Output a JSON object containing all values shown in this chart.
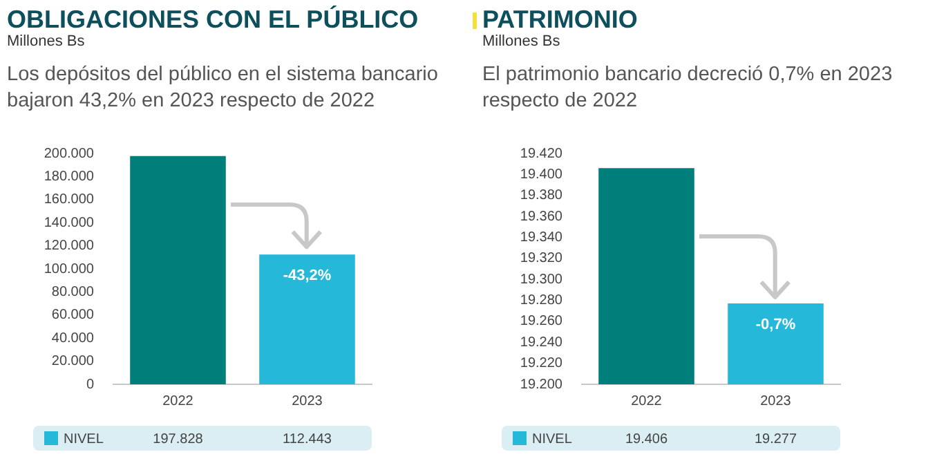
{
  "chart_data": [
    {
      "type": "bar",
      "title": "OBLIGACIONES CON EL PÚBLICO",
      "ylabel": "Millones Bs",
      "subtitle": "Los depósitos del público en el sistema bancario bajaron 43,2% en 2023 respecto de 2022",
      "categories": [
        "2022",
        "2023"
      ],
      "series": [
        {
          "name": "NIVEL",
          "color": "#25b8d9",
          "colors": [
            "#007f7a",
            "#25b8d9"
          ],
          "values": [
            197828,
            112443
          ],
          "value_labels": [
            "197.828",
            "112.443"
          ]
        }
      ],
      "ylim": [
        0,
        200000
      ],
      "yticks": [
        {
          "value": 0,
          "label": "0"
        },
        {
          "value": 20000,
          "label": "20.000"
        },
        {
          "value": 40000,
          "label": "40.000"
        },
        {
          "value": 60000,
          "label": "60.000"
        },
        {
          "value": 80000,
          "label": "80.000"
        },
        {
          "value": 100000,
          "label": "100.000"
        },
        {
          "value": 120000,
          "label": "120.000"
        },
        {
          "value": 140000,
          "label": "140.000"
        },
        {
          "value": 160000,
          "label": "160.000"
        },
        {
          "value": 180000,
          "label": "180.000"
        },
        {
          "value": 200000,
          "label": "200.000"
        }
      ],
      "annotations": [
        "-43,2%"
      ],
      "legend": "bottom",
      "grid": false
    },
    {
      "type": "bar",
      "title": "PATRIMONIO",
      "ylabel": "Millones Bs",
      "subtitle": "El patrimonio bancario decreció  0,7% en 2023 respecto de 2022",
      "categories": [
        "2022",
        "2023"
      ],
      "series": [
        {
          "name": "NIVEL",
          "color": "#25b8d9",
          "colors": [
            "#007f7a",
            "#25b8d9"
          ],
          "values": [
            19406,
            19277
          ],
          "value_labels": [
            "19.406",
            "19.277"
          ]
        }
      ],
      "ylim": [
        19200,
        19420
      ],
      "yticks": [
        {
          "value": 19200,
          "label": "19.200"
        },
        {
          "value": 19220,
          "label": "19.220"
        },
        {
          "value": 19240,
          "label": "19.240"
        },
        {
          "value": 19260,
          "label": "19.260"
        },
        {
          "value": 19280,
          "label": "19.280"
        },
        {
          "value": 19300,
          "label": "19.300"
        },
        {
          "value": 19320,
          "label": "19.320"
        },
        {
          "value": 19340,
          "label": "19.340"
        },
        {
          "value": 19360,
          "label": "19.360"
        },
        {
          "value": 19380,
          "label": "19.380"
        },
        {
          "value": 19400,
          "label": "19.400"
        },
        {
          "value": 19420,
          "label": "19.420"
        }
      ],
      "annotations": [
        "-0,7%"
      ],
      "legend": "bottom",
      "grid": false
    }
  ]
}
